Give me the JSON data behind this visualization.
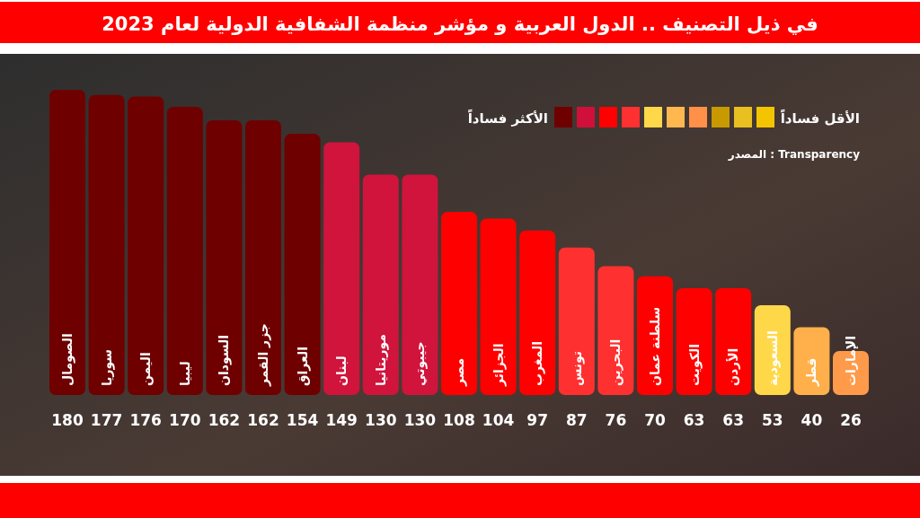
{
  "chart_data": {
    "type": "bar",
    "title": "في ذيل التصنيف .. الدول العربية و مؤشر منظمة الشفافية الدولية لعام 2023",
    "categories": [
      "الصومال",
      "سوريا",
      "اليمن",
      "ليبيا",
      "السودان",
      "جزر القمر",
      "العراق",
      "لبنان",
      "موريتانيا",
      "جيبوتي",
      "مصر",
      "الجزائر",
      "المغرب",
      "تونس",
      "البحرين",
      "سلطنة عمان",
      "الكويت",
      "الأردن",
      "السعودية",
      "قطر",
      "الإمارات"
    ],
    "values": [
      180,
      177,
      176,
      170,
      162,
      162,
      154,
      149,
      130,
      130,
      108,
      104,
      97,
      87,
      76,
      70,
      63,
      63,
      53,
      40,
      26
    ],
    "colors": [
      "#6e0000",
      "#6e0000",
      "#6e0000",
      "#6e0000",
      "#6e0000",
      "#6e0000",
      "#6e0000",
      "#d0143c",
      "#d0143c",
      "#d0143c",
      "#ff0000",
      "#ff0000",
      "#ff0000",
      "#ff3030",
      "#ff3030",
      "#ff0000",
      "#ff0000",
      "#ff0000",
      "#ffd84a",
      "#ffb04a",
      "#ff9a4a"
    ],
    "ylim": [
      0,
      180
    ],
    "tick_labels": false,
    "data_labels": true,
    "grid": false,
    "annotations": [
      "الأقل فساداً",
      "الأكثر فساداً",
      "المصدر : Transparency"
    ]
  }
}
